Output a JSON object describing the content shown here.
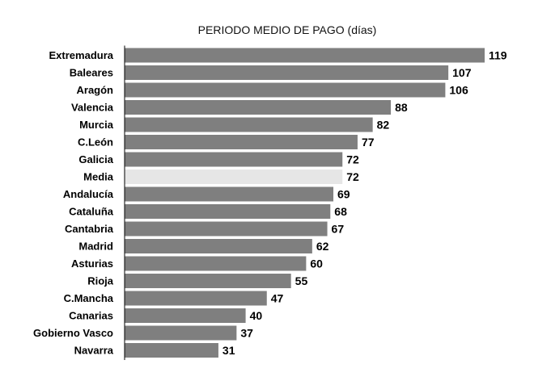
{
  "chart_data": {
    "type": "bar",
    "orientation": "horizontal",
    "title": "PERIODO MEDIO DE PAGO (días)",
    "categories": [
      "Extremadura",
      "Baleares",
      "Aragón",
      "Valencia",
      "Murcia",
      "C.León",
      "Galicia",
      "Media",
      "Andalucía",
      "Cataluña",
      "Cantabria",
      "Madrid",
      "Asturias",
      "Rioja",
      "C.Mancha",
      "Canarias",
      "Gobierno Vasco",
      "Navarra"
    ],
    "values": [
      119,
      107,
      106,
      88,
      82,
      77,
      72,
      72,
      69,
      68,
      67,
      62,
      60,
      55,
      47,
      40,
      37,
      31
    ],
    "highlight_category": "Media",
    "colors": {
      "bar": "#7f7f7f",
      "highlight": "#e6e6e6",
      "axis": "#000000"
    },
    "xlim": [
      0,
      119
    ],
    "grid": false,
    "legend": "none"
  }
}
